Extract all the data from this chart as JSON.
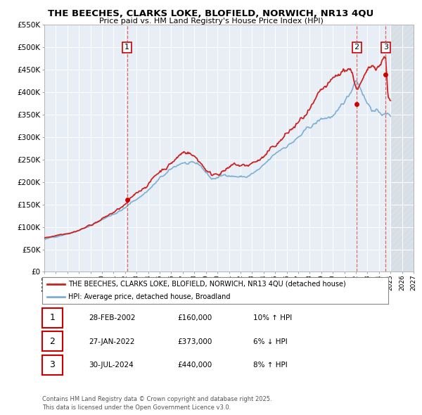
{
  "title": "THE BEECHES, CLARKS LOKE, BLOFIELD, NORWICH, NR13 4QU",
  "subtitle": "Price paid vs. HM Land Registry's House Price Index (HPI)",
  "xlim": [
    1995,
    2027
  ],
  "ylim": [
    0,
    550000
  ],
  "yticks": [
    0,
    50000,
    100000,
    150000,
    200000,
    250000,
    300000,
    350000,
    400000,
    450000,
    500000,
    550000
  ],
  "ytick_labels": [
    "£0",
    "£50K",
    "£100K",
    "£150K",
    "£200K",
    "£250K",
    "£300K",
    "£350K",
    "£400K",
    "£450K",
    "£500K",
    "£550K"
  ],
  "xticks": [
    1995,
    1996,
    1997,
    1998,
    1999,
    2000,
    2001,
    2002,
    2003,
    2004,
    2005,
    2006,
    2007,
    2008,
    2009,
    2010,
    2011,
    2012,
    2013,
    2014,
    2015,
    2016,
    2017,
    2018,
    2019,
    2020,
    2021,
    2022,
    2023,
    2024,
    2025,
    2026,
    2027
  ],
  "sale_dates": [
    2002.163,
    2022.074,
    2024.578
  ],
  "sale_prices": [
    160000,
    373000,
    440000
  ],
  "sale_labels": [
    "1",
    "2",
    "3"
  ],
  "vline_color": "#dd4444",
  "sale_color": "#cc0000",
  "hpi_line_color": "#7bafd4",
  "price_line_color": "#cc2222",
  "plot_bg_color": "#e8eef5",
  "legend_line1": "THE BEECHES, CLARKS LOKE, BLOFIELD, NORWICH, NR13 4QU (detached house)",
  "legend_line2": "HPI: Average price, detached house, Broadland",
  "table_rows": [
    [
      "1",
      "28-FEB-2002",
      "£160,000",
      "10% ↑ HPI"
    ],
    [
      "2",
      "27-JAN-2022",
      "£373,000",
      "6% ↓ HPI"
    ],
    [
      "3",
      "30-JUL-2024",
      "£440,000",
      "8% ↑ HPI"
    ]
  ],
  "footer": "Contains HM Land Registry data © Crown copyright and database right 2025.\nThis data is licensed under the Open Government Licence v3.0.",
  "shaded_region_start": 2025.0,
  "shaded_region_end": 2027.0
}
